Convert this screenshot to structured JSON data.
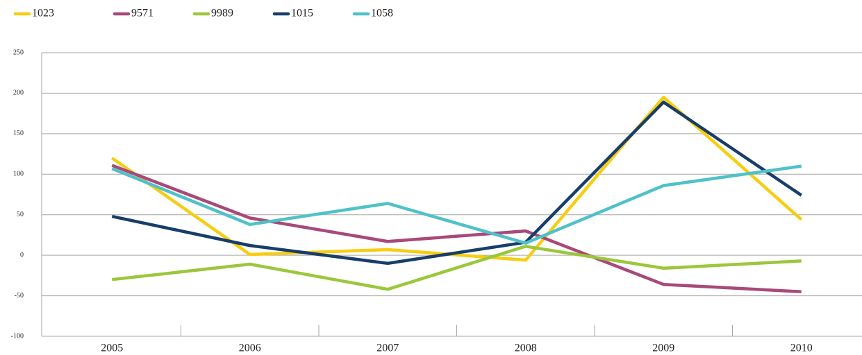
{
  "chart_data": {
    "type": "line",
    "categories": [
      "2005",
      "2006",
      "2007",
      "2008",
      "2009",
      "2010"
    ],
    "series": [
      {
        "name": "1023",
        "color": "#f7cd0f",
        "values": [
          120,
          1,
          7,
          -6,
          195,
          44
        ]
      },
      {
        "name": "9571",
        "color": "#a8497a",
        "values": [
          111,
          46,
          17,
          30,
          -36,
          -45
        ]
      },
      {
        "name": "9989",
        "color": "#9bc73b",
        "values": [
          -30,
          -11,
          -42,
          11,
          -16,
          -7
        ]
      },
      {
        "name": "1015",
        "color": "#173e6a",
        "values": [
          48,
          12,
          -10,
          16,
          189,
          74
        ]
      },
      {
        "name": "1058",
        "color": "#4fc1c9",
        "values": [
          107,
          38,
          64,
          15,
          86,
          110
        ]
      }
    ],
    "ylim": [
      -100,
      250
    ],
    "yticks": [
      -100,
      -50,
      0,
      50,
      100,
      150,
      200,
      250
    ],
    "grid": true,
    "legend": "top"
  }
}
